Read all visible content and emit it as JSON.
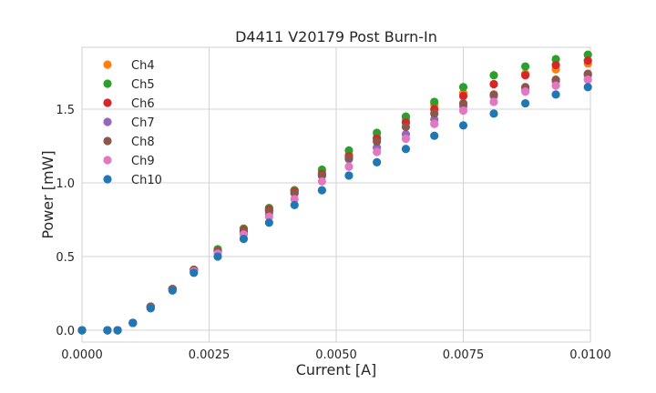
{
  "chart_data": {
    "type": "scatter",
    "title": "D4411 V20179 Post Burn-In",
    "xlabel": "Current [A]",
    "ylabel": "Power [mW]",
    "xlim": [
      0.0,
      0.01
    ],
    "ylim": [
      -0.08,
      1.92
    ],
    "xticks": [
      "0.0000",
      "0.0025",
      "0.0050",
      "0.0075",
      "0.0100"
    ],
    "xtick_values": [
      0.0,
      0.0025,
      0.005,
      0.0075,
      0.01
    ],
    "yticks": [
      "0.0",
      "0.5",
      "1.0",
      "1.5"
    ],
    "ytick_values": [
      0.0,
      0.5,
      1.0,
      1.5
    ],
    "grid": true,
    "legend_position": "upper-left",
    "x": [
      0.0,
      0.0005,
      0.0007,
      0.001,
      0.00135,
      0.00178,
      0.0022,
      0.00267,
      0.00318,
      0.00368,
      0.00418,
      0.00472,
      0.00525,
      0.0058,
      0.00637,
      0.00693,
      0.0075,
      0.0081,
      0.00872,
      0.00932,
      0.00995
    ],
    "series": [
      {
        "name": "Ch4",
        "color": "#ff7f0e",
        "values": [
          0.0,
          0.0,
          0.0,
          0.05,
          0.16,
          0.28,
          0.41,
          0.54,
          0.67,
          0.81,
          0.95,
          1.07,
          1.19,
          1.31,
          1.43,
          1.53,
          1.61,
          1.67,
          1.74,
          1.77,
          1.81
        ]
      },
      {
        "name": "Ch5",
        "color": "#2ca02c",
        "values": [
          0.0,
          0.0,
          0.0,
          0.05,
          0.16,
          0.28,
          0.41,
          0.55,
          0.69,
          0.83,
          0.95,
          1.09,
          1.22,
          1.34,
          1.45,
          1.55,
          1.65,
          1.73,
          1.79,
          1.84,
          1.87
        ]
      },
      {
        "name": "Ch6",
        "color": "#d62728",
        "values": [
          0.0,
          0.0,
          0.0,
          0.05,
          0.16,
          0.28,
          0.41,
          0.54,
          0.68,
          0.82,
          0.94,
          1.06,
          1.18,
          1.3,
          1.41,
          1.5,
          1.59,
          1.67,
          1.73,
          1.8,
          1.83
        ]
      },
      {
        "name": "Ch7",
        "color": "#9467bd",
        "values": [
          0.0,
          0.0,
          0.0,
          0.05,
          0.15,
          0.28,
          0.4,
          0.54,
          0.66,
          0.79,
          0.93,
          1.05,
          1.16,
          1.24,
          1.33,
          1.43,
          1.52,
          1.59,
          1.64,
          1.69,
          1.73
        ]
      },
      {
        "name": "Ch8",
        "color": "#8c564b",
        "values": [
          0.0,
          0.0,
          0.0,
          0.05,
          0.16,
          0.28,
          0.41,
          0.54,
          0.67,
          0.81,
          0.93,
          1.05,
          1.17,
          1.28,
          1.38,
          1.47,
          1.54,
          1.6,
          1.65,
          1.7,
          1.74
        ]
      },
      {
        "name": "Ch9",
        "color": "#e377c2",
        "values": [
          0.0,
          0.0,
          0.0,
          0.05,
          0.15,
          0.27,
          0.4,
          0.52,
          0.65,
          0.77,
          0.89,
          1.01,
          1.11,
          1.21,
          1.3,
          1.4,
          1.49,
          1.55,
          1.62,
          1.66,
          1.7
        ]
      },
      {
        "name": "Ch10",
        "color": "#1f77b4",
        "values": [
          0.0,
          0.0,
          0.0,
          0.05,
          0.15,
          0.27,
          0.39,
          0.5,
          0.62,
          0.73,
          0.85,
          0.95,
          1.05,
          1.14,
          1.23,
          1.32,
          1.39,
          1.47,
          1.54,
          1.6,
          1.65
        ]
      }
    ]
  }
}
